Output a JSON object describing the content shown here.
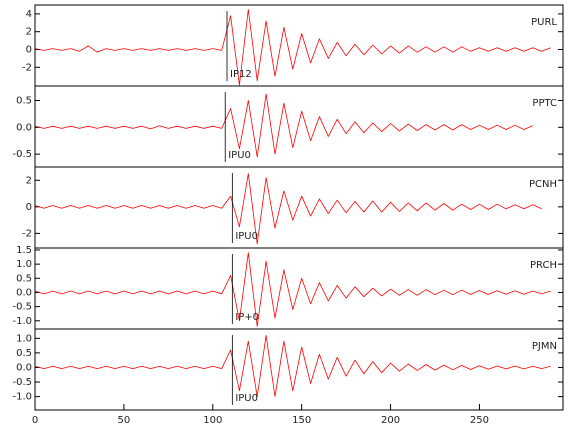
{
  "chart_data": [
    {
      "type": "line",
      "station": "PURL",
      "pick": 108,
      "pick_label": "IP12",
      "x": [
        0,
        5,
        10,
        15,
        20,
        25,
        30,
        35,
        40,
        45,
        50,
        55,
        60,
        65,
        70,
        75,
        80,
        85,
        90,
        95,
        100,
        105,
        110,
        115,
        120,
        125,
        130,
        135,
        140,
        145,
        150,
        155,
        160,
        165,
        170,
        175,
        180,
        185,
        190,
        195,
        200,
        205,
        210,
        215,
        220,
        225,
        230,
        235,
        240,
        245,
        250,
        255,
        260,
        265,
        270,
        275,
        280,
        285,
        290
      ],
      "values": [
        0.1,
        -0.1,
        0.1,
        -0.1,
        0.1,
        -0.2,
        0.4,
        -0.3,
        0.1,
        -0.1,
        0.1,
        -0.1,
        0.1,
        -0.1,
        0.1,
        -0.1,
        0.1,
        -0.1,
        0.1,
        -0.1,
        0.1,
        -0.1,
        3.8,
        -4.0,
        4.5,
        -3.5,
        3.2,
        -3.0,
        2.5,
        -2.2,
        1.8,
        -1.5,
        1.2,
        -1.0,
        0.8,
        -0.7,
        0.6,
        -0.6,
        0.5,
        -0.5,
        0.4,
        -0.4,
        0.4,
        -0.3,
        0.3,
        -0.3,
        0.3,
        -0.3,
        0.3,
        -0.2,
        0.2,
        -0.2,
        0.2,
        -0.2,
        0.2,
        -0.2,
        0.2,
        -0.2,
        0.2
      ],
      "color": "#ff0000",
      "xlim": [
        0,
        297
      ],
      "ylim": [
        -4.1,
        5
      ],
      "yticks": [
        -2,
        0,
        2,
        4
      ]
    },
    {
      "type": "line",
      "station": "PPTC",
      "pick": 107,
      "pick_label": "IPU0",
      "x": [
        0,
        5,
        10,
        15,
        20,
        25,
        30,
        35,
        40,
        45,
        50,
        55,
        60,
        65,
        70,
        75,
        80,
        85,
        90,
        95,
        100,
        105,
        110,
        115,
        120,
        125,
        130,
        135,
        140,
        145,
        150,
        155,
        160,
        165,
        170,
        175,
        180,
        185,
        190,
        195,
        200,
        205,
        210,
        215,
        220,
        225,
        230,
        235,
        240,
        245,
        250,
        255,
        260,
        265,
        270,
        275,
        280,
        285,
        290
      ],
      "values": [
        0.02,
        -0.02,
        0.02,
        -0.02,
        0.02,
        -0.02,
        0.02,
        -0.02,
        0.02,
        -0.02,
        0.02,
        -0.02,
        0.02,
        -0.03,
        0.03,
        -0.02,
        0.02,
        -0.02,
        0.02,
        -0.02,
        0.02,
        -0.02,
        0.35,
        -0.4,
        0.5,
        -0.55,
        0.62,
        -0.5,
        0.45,
        -0.38,
        0.3,
        -0.25,
        0.2,
        -0.17,
        0.15,
        -0.12,
        0.1,
        -0.1,
        0.08,
        -0.08,
        0.07,
        -0.07,
        0.06,
        -0.06,
        0.05,
        -0.05,
        0.05,
        -0.05,
        0.05,
        -0.04,
        0.04,
        -0.04,
        0.04,
        -0.04,
        0.04,
        -0.04,
        0.03,
        null,
        null
      ],
      "color": "#ff0000",
      "xlim": [
        0,
        297
      ],
      "ylim": [
        -0.74,
        0.77
      ],
      "yticks": [
        {
          "value": -0.5,
          "label": "-0.5"
        },
        {
          "value": 0,
          "label": "0.0"
        },
        {
          "value": 0.5,
          "label": "0.5"
        }
      ]
    },
    {
      "type": "line",
      "station": "PCNH",
      "pick": 111,
      "pick_label": "IPU0",
      "x": [
        0,
        5,
        10,
        15,
        20,
        25,
        30,
        35,
        40,
        45,
        50,
        55,
        60,
        65,
        70,
        75,
        80,
        85,
        90,
        95,
        100,
        105,
        110,
        115,
        120,
        125,
        130,
        135,
        140,
        145,
        150,
        155,
        160,
        165,
        170,
        175,
        180,
        185,
        190,
        195,
        200,
        205,
        210,
        215,
        220,
        225,
        230,
        235,
        240,
        245,
        250,
        255,
        260,
        265,
        270,
        275,
        280,
        285,
        290
      ],
      "values": [
        0.1,
        -0.1,
        0.1,
        -0.1,
        0.1,
        -0.1,
        0.1,
        -0.1,
        0.1,
        -0.1,
        0.1,
        -0.1,
        0.1,
        -0.1,
        0.1,
        -0.1,
        0.1,
        -0.1,
        0.1,
        -0.1,
        0.1,
        -0.1,
        0.8,
        -1.5,
        2.5,
        -2.8,
        2.2,
        -1.6,
        1.2,
        -1.0,
        0.8,
        -0.7,
        0.6,
        -0.5,
        0.5,
        -0.45,
        0.4,
        -0.4,
        0.45,
        -0.4,
        0.35,
        -0.35,
        0.3,
        -0.3,
        0.3,
        -0.25,
        0.25,
        -0.25,
        0.2,
        -0.2,
        0.2,
        -0.2,
        0.2,
        -0.15,
        0.15,
        -0.15,
        0.15,
        -0.15,
        null
      ],
      "color": "#ff0000",
      "xlim": [
        0,
        297
      ],
      "ylim": [
        -3.1,
        3.0
      ],
      "yticks": [
        -2,
        0,
        2
      ]
    },
    {
      "type": "line",
      "station": "PRCH",
      "pick": 111,
      "pick_label": "IP+0",
      "x": [
        0,
        5,
        10,
        15,
        20,
        25,
        30,
        35,
        40,
        45,
        50,
        55,
        60,
        65,
        70,
        75,
        80,
        85,
        90,
        95,
        100,
        105,
        110,
        115,
        120,
        125,
        130,
        135,
        140,
        145,
        150,
        155,
        160,
        165,
        170,
        175,
        180,
        185,
        190,
        195,
        200,
        205,
        210,
        215,
        220,
        225,
        230,
        235,
        240,
        245,
        250,
        255,
        260,
        265,
        270,
        275,
        280,
        285,
        290
      ],
      "values": [
        0.05,
        -0.05,
        0.05,
        -0.05,
        0.05,
        -0.05,
        0.05,
        -0.05,
        0.05,
        -0.05,
        0.05,
        -0.05,
        0.05,
        -0.05,
        0.05,
        -0.05,
        0.05,
        -0.05,
        0.05,
        -0.05,
        0.05,
        -0.05,
        0.6,
        -1.0,
        1.4,
        -1.2,
        1.1,
        -0.9,
        0.8,
        -0.6,
        0.5,
        -0.4,
        0.35,
        -0.3,
        0.25,
        -0.2,
        0.2,
        -0.15,
        0.15,
        -0.12,
        0.12,
        -0.1,
        0.1,
        -0.1,
        0.1,
        -0.08,
        0.08,
        -0.08,
        0.08,
        -0.07,
        0.07,
        -0.07,
        0.06,
        -0.06,
        0.06,
        -0.06,
        0.05,
        -0.05,
        0.05
      ],
      "color": "#ff0000",
      "xlim": [
        0,
        297
      ],
      "ylim": [
        -1.29,
        1.57
      ],
      "yticks": [
        {
          "value": -1,
          "label": "-1.0"
        },
        {
          "value": -0.5,
          "label": "-0.5"
        },
        {
          "value": 0,
          "label": "0.0"
        },
        {
          "value": 0.5,
          "label": "0.5"
        },
        {
          "value": 1,
          "label": "1.0"
        },
        {
          "value": 1.5,
          "label": "1.5"
        }
      ]
    },
    {
      "type": "line",
      "station": "PJMN",
      "pick": 111,
      "pick_label": "IPU0",
      "x": [
        0,
        5,
        10,
        15,
        20,
        25,
        30,
        35,
        40,
        45,
        50,
        55,
        60,
        65,
        70,
        75,
        80,
        85,
        90,
        95,
        100,
        105,
        110,
        115,
        120,
        125,
        130,
        135,
        140,
        145,
        150,
        155,
        160,
        165,
        170,
        175,
        180,
        185,
        190,
        195,
        200,
        205,
        210,
        215,
        220,
        225,
        230,
        235,
        240,
        245,
        250,
        255,
        260,
        265,
        270,
        275,
        280,
        285,
        290
      ],
      "values": [
        0.04,
        -0.04,
        0.04,
        -0.04,
        0.04,
        -0.04,
        0.04,
        -0.04,
        0.04,
        -0.04,
        0.04,
        -0.04,
        0.04,
        -0.04,
        0.04,
        -0.04,
        0.04,
        -0.04,
        0.04,
        -0.04,
        0.04,
        -0.04,
        0.6,
        -0.8,
        0.9,
        -1.0,
        1.1,
        -1.0,
        0.9,
        -0.8,
        0.7,
        -0.55,
        0.45,
        -0.4,
        0.35,
        -0.3,
        0.25,
        -0.22,
        0.2,
        -0.18,
        0.15,
        -0.13,
        0.12,
        -0.1,
        0.1,
        -0.09,
        0.08,
        -0.08,
        0.07,
        -0.07,
        0.06,
        -0.06,
        0.05,
        -0.05,
        0.05,
        -0.05,
        0.04,
        -0.04,
        0.04
      ],
      "color": "#ff0000",
      "xlim": [
        0,
        297
      ],
      "ylim": [
        -1.46,
        1.32
      ],
      "yticks": [
        {
          "value": -1,
          "label": "-1.0"
        },
        {
          "value": -0.5,
          "label": "-0.5"
        },
        {
          "value": 0,
          "label": "0.0"
        },
        {
          "value": 0.5,
          "label": "0.5"
        },
        {
          "value": 1,
          "label": "1.0"
        }
      ],
      "xticks": [
        0,
        50,
        100,
        150,
        200,
        250
      ]
    }
  ]
}
